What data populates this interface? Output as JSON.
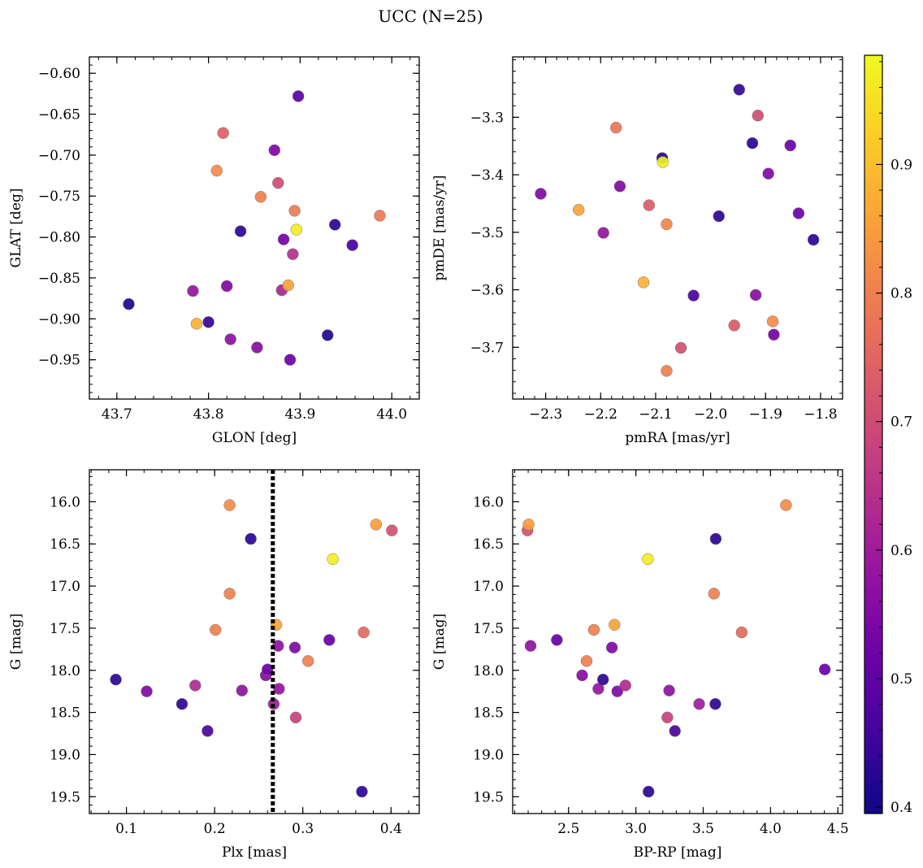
{
  "figure": {
    "title": "UCC (N=25)"
  },
  "colorbar": {
    "min": 0.395,
    "max": 0.985,
    "ticks": [
      0.4,
      0.5,
      0.6,
      0.7,
      0.8,
      0.9
    ],
    "tick_labels": [
      "0.4",
      "0.5",
      "0.6",
      "0.7",
      "0.8",
      "0.9"
    ],
    "colormap": "plasma"
  },
  "chart_data": [
    {
      "type": "scatter",
      "xlabel": "GLON [deg]",
      "ylabel": "GLAT [deg]",
      "xlim": [
        43.67,
        44.03
      ],
      "ylim": [
        -0.998,
        -0.58
      ],
      "y_inverted": false,
      "xticks": [
        43.7,
        43.8,
        43.9,
        44.0
      ],
      "xtick_labels": [
        "43.7",
        "43.8",
        "43.9",
        "44.0"
      ],
      "yticks": [
        -0.95,
        -0.9,
        -0.85,
        -0.8,
        -0.75,
        -0.7,
        -0.65,
        -0.6
      ],
      "ytick_labels": [
        "−0.95",
        "−0.90",
        "−0.85",
        "−0.80",
        "−0.75",
        "−0.70",
        "−0.65",
        "−0.60"
      ],
      "points": [
        {
          "x": 43.713,
          "y": -0.882,
          "c": 0.41
        },
        {
          "x": 43.783,
          "y": -0.866,
          "c": 0.58
        },
        {
          "x": 43.787,
          "y": -0.906,
          "c": 0.88
        },
        {
          "x": 43.8,
          "y": -0.904,
          "c": 0.44
        },
        {
          "x": 43.809,
          "y": -0.719,
          "c": 0.82
        },
        {
          "x": 43.816,
          "y": -0.673,
          "c": 0.74
        },
        {
          "x": 43.82,
          "y": -0.86,
          "c": 0.55
        },
        {
          "x": 43.824,
          "y": -0.925,
          "c": 0.57
        },
        {
          "x": 43.835,
          "y": -0.793,
          "c": 0.43
        },
        {
          "x": 43.853,
          "y": -0.935,
          "c": 0.56
        },
        {
          "x": 43.857,
          "y": -0.751,
          "c": 0.8
        },
        {
          "x": 43.872,
          "y": -0.694,
          "c": 0.55
        },
        {
          "x": 43.876,
          "y": -0.734,
          "c": 0.7
        },
        {
          "x": 43.88,
          "y": -0.865,
          "c": 0.62
        },
        {
          "x": 43.882,
          "y": -0.803,
          "c": 0.53
        },
        {
          "x": 43.887,
          "y": -0.859,
          "c": 0.86
        },
        {
          "x": 43.889,
          "y": -0.95,
          "c": 0.52
        },
        {
          "x": 43.892,
          "y": -0.821,
          "c": 0.64
        },
        {
          "x": 43.894,
          "y": -0.768,
          "c": 0.79
        },
        {
          "x": 43.896,
          "y": -0.791,
          "c": 0.97
        },
        {
          "x": 43.898,
          "y": -0.628,
          "c": 0.49
        },
        {
          "x": 43.93,
          "y": -0.92,
          "c": 0.42
        },
        {
          "x": 43.938,
          "y": -0.785,
          "c": 0.43
        },
        {
          "x": 43.957,
          "y": -0.81,
          "c": 0.46
        },
        {
          "x": 43.987,
          "y": -0.774,
          "c": 0.79
        }
      ]
    },
    {
      "type": "scatter",
      "xlabel": "pmRA [mas/yr]",
      "ylabel": "pmDE [mas/yr]",
      "xlim": [
        -2.36,
        -1.76
      ],
      "ylim": [
        -3.79,
        -3.195
      ],
      "y_inverted": false,
      "xticks": [
        -2.3,
        -2.2,
        -2.1,
        -2.0,
        -1.9,
        -1.8
      ],
      "xtick_labels": [
        "−2.3",
        "−2.2",
        "−2.1",
        "−2.0",
        "−1.9",
        "−1.8"
      ],
      "yticks": [
        -3.7,
        -3.6,
        -3.5,
        -3.4,
        -3.3
      ],
      "ytick_labels": [
        "−3.7",
        "−3.6",
        "−3.5",
        "−3.4",
        "−3.3"
      ],
      "points": [
        {
          "x": -2.309,
          "y": -3.433,
          "c": 0.55
        },
        {
          "x": -2.24,
          "y": -3.461,
          "c": 0.86
        },
        {
          "x": -2.195,
          "y": -3.501,
          "c": 0.58
        },
        {
          "x": -2.172,
          "y": -3.318,
          "c": 0.78
        },
        {
          "x": -2.165,
          "y": -3.42,
          "c": 0.55
        },
        {
          "x": -2.122,
          "y": -3.587,
          "c": 0.88
        },
        {
          "x": -2.112,
          "y": -3.453,
          "c": 0.73
        },
        {
          "x": -2.088,
          "y": -3.371,
          "c": 0.42
        },
        {
          "x": -2.087,
          "y": -3.378,
          "c": 0.97
        },
        {
          "x": -2.08,
          "y": -3.486,
          "c": 0.81
        },
        {
          "x": -2.08,
          "y": -3.741,
          "c": 0.8
        },
        {
          "x": -2.054,
          "y": -3.701,
          "c": 0.71
        },
        {
          "x": -2.031,
          "y": -3.61,
          "c": 0.47
        },
        {
          "x": -1.985,
          "y": -3.472,
          "c": 0.43
        },
        {
          "x": -1.957,
          "y": -3.662,
          "c": 0.73
        },
        {
          "x": -1.948,
          "y": -3.252,
          "c": 0.44
        },
        {
          "x": -1.924,
          "y": -3.345,
          "c": 0.43
        },
        {
          "x": -1.918,
          "y": -3.609,
          "c": 0.56
        },
        {
          "x": -1.914,
          "y": -3.297,
          "c": 0.7
        },
        {
          "x": -1.895,
          "y": -3.398,
          "c": 0.55
        },
        {
          "x": -1.887,
          "y": -3.655,
          "c": 0.82
        },
        {
          "x": -1.885,
          "y": -3.678,
          "c": 0.53
        },
        {
          "x": -1.855,
          "y": -3.349,
          "c": 0.52
        },
        {
          "x": -1.84,
          "y": -3.467,
          "c": 0.52
        },
        {
          "x": -1.813,
          "y": -3.513,
          "c": 0.43
        }
      ]
    },
    {
      "type": "scatter",
      "xlabel": "Plx [mas]",
      "ylabel": "G [mag]",
      "xlim": [
        0.058,
        0.432
      ],
      "ylim": [
        19.7,
        15.62
      ],
      "y_inverted": true,
      "xticks": [
        0.1,
        0.2,
        0.3,
        0.4
      ],
      "xtick_labels": [
        "0.1",
        "0.2",
        "0.3",
        "0.4"
      ],
      "yticks": [
        16.0,
        16.5,
        17.0,
        17.5,
        18.0,
        18.5,
        19.0,
        19.5
      ],
      "ytick_labels": [
        "16.0",
        "16.5",
        "17.0",
        "17.5",
        "18.0",
        "18.5",
        "19.0",
        "19.5"
      ],
      "vline": {
        "x": 0.266,
        "style": "dotted"
      },
      "points": [
        {
          "x": 0.088,
          "y": 18.11,
          "c": 0.43
        },
        {
          "x": 0.123,
          "y": 18.25,
          "c": 0.55
        },
        {
          "x": 0.163,
          "y": 18.4,
          "c": 0.43
        },
        {
          "x": 0.178,
          "y": 18.18,
          "c": 0.63
        },
        {
          "x": 0.192,
          "y": 18.72,
          "c": 0.47
        },
        {
          "x": 0.201,
          "y": 17.52,
          "c": 0.8
        },
        {
          "x": 0.217,
          "y": 16.04,
          "c": 0.82
        },
        {
          "x": 0.217,
          "y": 17.09,
          "c": 0.8
        },
        {
          "x": 0.231,
          "y": 18.24,
          "c": 0.57
        },
        {
          "x": 0.241,
          "y": 16.44,
          "c": 0.43
        },
        {
          "x": 0.258,
          "y": 18.06,
          "c": 0.56
        },
        {
          "x": 0.26,
          "y": 17.99,
          "c": 0.52
        },
        {
          "x": 0.267,
          "y": 18.4,
          "c": 0.6
        },
        {
          "x": 0.27,
          "y": 17.46,
          "c": 0.86
        },
        {
          "x": 0.272,
          "y": 17.71,
          "c": 0.57
        },
        {
          "x": 0.273,
          "y": 18.22,
          "c": 0.58
        },
        {
          "x": 0.291,
          "y": 17.73,
          "c": 0.55
        },
        {
          "x": 0.292,
          "y": 18.56,
          "c": 0.68
        },
        {
          "x": 0.306,
          "y": 17.89,
          "c": 0.8
        },
        {
          "x": 0.33,
          "y": 17.64,
          "c": 0.51
        },
        {
          "x": 0.334,
          "y": 16.68,
          "c": 0.97
        },
        {
          "x": 0.367,
          "y": 19.44,
          "c": 0.43
        },
        {
          "x": 0.369,
          "y": 17.55,
          "c": 0.76
        },
        {
          "x": 0.383,
          "y": 16.27,
          "c": 0.85
        },
        {
          "x": 0.401,
          "y": 16.34,
          "c": 0.71
        }
      ]
    },
    {
      "type": "scatter",
      "xlabel": "BP-RP [mag]",
      "ylabel": "G [mag]",
      "xlim": [
        2.085,
        4.535
      ],
      "ylim": [
        19.7,
        15.62
      ],
      "y_inverted": true,
      "xticks": [
        2.5,
        3.0,
        3.5,
        4.0,
        4.5
      ],
      "xtick_labels": [
        "2.5",
        "3.0",
        "3.5",
        "4.0",
        "4.5"
      ],
      "yticks": [
        16.0,
        16.5,
        17.0,
        17.5,
        18.0,
        18.5,
        19.0,
        19.5
      ],
      "ytick_labels": [
        "16.0",
        "16.5",
        "17.0",
        "17.5",
        "18.0",
        "18.5",
        "19.0",
        "19.5"
      ],
      "points": [
        {
          "x": 2.195,
          "y": 16.34,
          "c": 0.71
        },
        {
          "x": 2.203,
          "y": 16.27,
          "c": 0.85
        },
        {
          "x": 2.218,
          "y": 17.71,
          "c": 0.57
        },
        {
          "x": 2.413,
          "y": 17.64,
          "c": 0.51
        },
        {
          "x": 2.601,
          "y": 18.06,
          "c": 0.56
        },
        {
          "x": 2.634,
          "y": 17.89,
          "c": 0.8
        },
        {
          "x": 2.688,
          "y": 17.52,
          "c": 0.8
        },
        {
          "x": 2.721,
          "y": 18.22,
          "c": 0.58
        },
        {
          "x": 2.756,
          "y": 18.11,
          "c": 0.43
        },
        {
          "x": 2.822,
          "y": 17.73,
          "c": 0.55
        },
        {
          "x": 2.841,
          "y": 17.46,
          "c": 0.86
        },
        {
          "x": 2.862,
          "y": 18.25,
          "c": 0.55
        },
        {
          "x": 2.922,
          "y": 18.18,
          "c": 0.63
        },
        {
          "x": 3.089,
          "y": 16.68,
          "c": 0.97
        },
        {
          "x": 3.094,
          "y": 19.44,
          "c": 0.43
        },
        {
          "x": 3.234,
          "y": 18.56,
          "c": 0.68
        },
        {
          "x": 3.247,
          "y": 18.24,
          "c": 0.57
        },
        {
          "x": 3.29,
          "y": 18.72,
          "c": 0.47
        },
        {
          "x": 3.47,
          "y": 18.4,
          "c": 0.6
        },
        {
          "x": 3.58,
          "y": 17.09,
          "c": 0.8
        },
        {
          "x": 3.59,
          "y": 18.4,
          "c": 0.43
        },
        {
          "x": 3.593,
          "y": 16.44,
          "c": 0.43
        },
        {
          "x": 3.786,
          "y": 17.55,
          "c": 0.76
        },
        {
          "x": 4.115,
          "y": 16.04,
          "c": 0.82
        },
        {
          "x": 4.403,
          "y": 17.99,
          "c": 0.52
        }
      ]
    }
  ]
}
